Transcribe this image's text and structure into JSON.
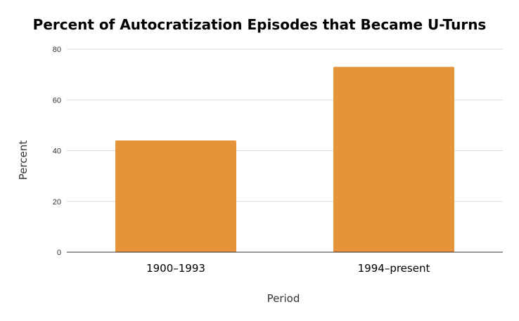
{
  "chart_data": {
    "type": "bar",
    "title": "Percent of Autocratization Episodes that Became U-Turns",
    "xlabel": "Period",
    "ylabel": "Percent",
    "categories": [
      "1900–1993",
      "1994–present"
    ],
    "values": [
      44,
      73
    ],
    "ylim": [
      0,
      80
    ],
    "yticks": [
      0,
      20,
      40,
      60,
      80
    ],
    "grid": true,
    "legend": "none",
    "colors": {
      "bar": "#e6943a",
      "grid": "#d9d9d9",
      "axis": "#333333"
    }
  }
}
